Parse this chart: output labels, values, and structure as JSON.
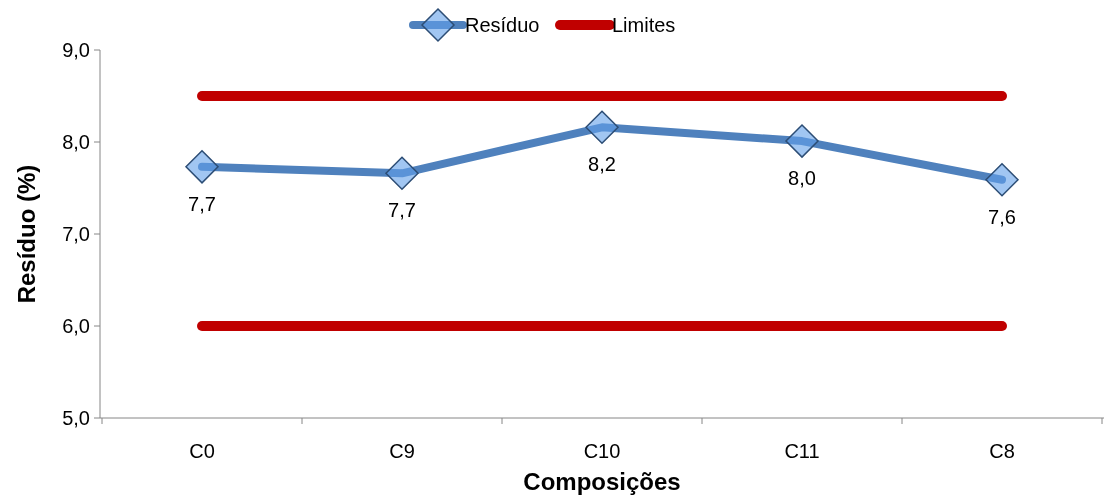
{
  "chart_data": {
    "type": "line",
    "xlabel": "Composições",
    "ylabel": "Resíduo (%)",
    "categories": [
      "C0",
      "C9",
      "C10",
      "C11",
      "C8"
    ],
    "series": [
      {
        "name": "Resíduo",
        "color": "#4f81bd",
        "values": [
          7.73,
          7.66,
          8.16,
          8.01,
          7.59
        ],
        "marker": "diamond",
        "value_labels": [
          "7,7",
          "7,7",
          "8,2",
          "8,0",
          "7,6"
        ]
      },
      {
        "name": "Limites",
        "color": "#c00000",
        "values": [
          8.5,
          8.5,
          8.5,
          8.5,
          8.5
        ],
        "marker": "none"
      },
      {
        "color": "#c00000",
        "values": [
          6.0,
          6.0,
          6.0,
          6.0,
          6.0
        ],
        "marker": "none"
      }
    ],
    "ylim": [
      5,
      9
    ],
    "yticks": [
      {
        "value": 5,
        "label": "5,0"
      },
      {
        "value": 6,
        "label": "6,0"
      },
      {
        "value": 7,
        "label": "7,0"
      },
      {
        "value": 8,
        "label": "8,0"
      },
      {
        "value": 9,
        "label": "9,0"
      }
    ],
    "grid": false,
    "legend": "top"
  }
}
